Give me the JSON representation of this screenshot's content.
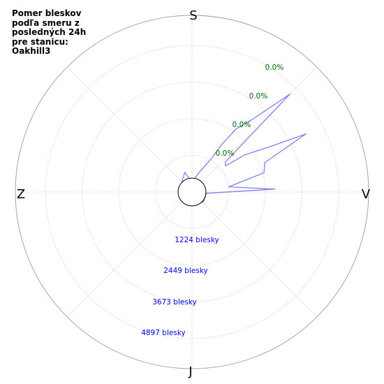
{
  "chart_data": {
    "type": "polar-line",
    "title_lines": [
      "Pomer bleskov",
      "podľa smeru z",
      "posledných 24h",
      "pre stanicu:",
      "Oakhill3"
    ],
    "directions": {
      "top": "S",
      "right": "V",
      "bottom": "J",
      "left": "Z"
    },
    "radial_ticks": [
      1224,
      2449,
      3673,
      4897
    ],
    "radial_tick_labels": [
      "1224 blesky",
      "2449 blesky",
      "3673 blesky",
      "4897 blesky"
    ],
    "percent_labels": [
      "0.0%",
      "0.0%",
      "0.0%",
      "0.0%"
    ],
    "rmax": 4897,
    "grid": true,
    "series_color": "#8080ee",
    "series": [
      {
        "bearing_deg": [
          0,
          10,
          20,
          30,
          32,
          35,
          40,
          45,
          48,
          52,
          55,
          60,
          63,
          68,
          75,
          82,
          88,
          95,
          110,
          130,
          150,
          170,
          190,
          210,
          240,
          270,
          300,
          320,
          340,
          350
        ],
        "values": [
          370,
          430,
          690,
          1280,
          1860,
          2570,
          3200,
          4620,
          1500,
          1420,
          2170,
          3060,
          4270,
          2620,
          2490,
          1240,
          2770,
          480,
          470,
          500,
          450,
          460,
          440,
          450,
          420,
          400,
          390,
          510,
          700,
          430
        ]
      }
    ]
  }
}
